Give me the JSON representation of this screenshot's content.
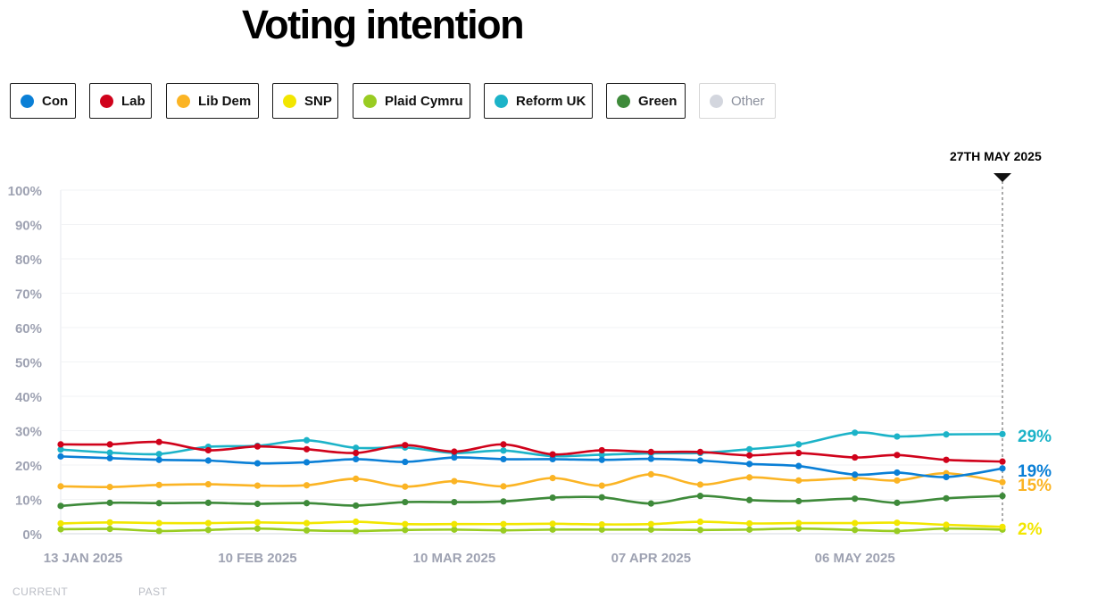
{
  "title": "Voting intention",
  "legend": [
    {
      "label": "Con",
      "color": "#0a7fd6",
      "active": true
    },
    {
      "label": "Lab",
      "color": "#d0021b",
      "active": true
    },
    {
      "label": "Lib Dem",
      "color": "#fbb424",
      "active": true
    },
    {
      "label": "SNP",
      "color": "#f2e600",
      "active": true
    },
    {
      "label": "Plaid Cymru",
      "color": "#99cc22",
      "active": true
    },
    {
      "label": "Reform UK",
      "color": "#1cb3c8",
      "active": true
    },
    {
      "label": "Green",
      "color": "#3e8a3a",
      "active": true
    },
    {
      "label": "Other",
      "color": "#d3d6de",
      "active": false
    }
  ],
  "marker_label": "27TH MAY 2025",
  "footer": {
    "left": "CURRENT",
    "right": "PAST"
  },
  "chart_data": {
    "type": "line",
    "x": [
      "2025-01-13",
      "2025-01-20",
      "2025-01-27",
      "2025-02-03",
      "2025-02-10",
      "2025-02-17",
      "2025-02-24",
      "2025-03-03",
      "2025-03-10",
      "2025-03-17",
      "2025-03-24",
      "2025-03-31",
      "2025-04-07",
      "2025-04-14",
      "2025-04-21",
      "2025-04-28",
      "2025-05-06",
      "2025-05-12",
      "2025-05-19",
      "2025-05-27"
    ],
    "x_ticks": [
      "13 JAN 2025",
      "10 FEB 2025",
      "10 MAR 2025",
      "07 APR 2025",
      "06 MAY 2025"
    ],
    "y_ticks": [
      "0%",
      "10%",
      "20%",
      "30%",
      "40%",
      "50%",
      "60%",
      "70%",
      "80%",
      "90%",
      "100%"
    ],
    "ylim": [
      0,
      100
    ],
    "grid": true,
    "series": [
      {
        "name": "Con",
        "color": "#0a7fd6",
        "end_label": "19%",
        "values": [
          22.5,
          22,
          21.5,
          21.3,
          20.5,
          20.8,
          21.7,
          20.9,
          22.2,
          21.7,
          21.7,
          21.5,
          21.8,
          21.3,
          20.3,
          19.7,
          17.2,
          17.8,
          16.5,
          19
        ]
      },
      {
        "name": "Lab",
        "color": "#d0021b",
        "end_label": "",
        "values": [
          26,
          26,
          26.7,
          24.3,
          25.4,
          24.6,
          23.5,
          25.8,
          23.9,
          26,
          23.1,
          24.3,
          23.8,
          23.8,
          22.8,
          23.5,
          22.2,
          22.9,
          21.5,
          21
        ]
      },
      {
        "name": "Lib Dem",
        "color": "#fbb424",
        "end_label": "15%",
        "values": [
          13.8,
          13.6,
          14.2,
          14.4,
          14,
          14.1,
          16,
          13.7,
          15.3,
          13.8,
          16.2,
          14,
          17.3,
          14.3,
          16.4,
          15.5,
          16.2,
          15.5,
          17.6,
          15
        ]
      },
      {
        "name": "SNP",
        "color": "#f2e600",
        "end_label": "2%",
        "values": [
          3,
          3.3,
          3.1,
          3.1,
          3.3,
          3.1,
          3.5,
          2.8,
          2.8,
          2.8,
          2.9,
          2.7,
          2.8,
          3.5,
          3,
          3.1,
          3.1,
          3.2,
          2.6,
          2
        ]
      },
      {
        "name": "Plaid Cymru",
        "color": "#99cc22",
        "end_label": "",
        "values": [
          1.3,
          1.4,
          0.8,
          1.1,
          1.5,
          1,
          0.8,
          1.1,
          1.2,
          1,
          1.2,
          1.2,
          1.2,
          1.1,
          1.2,
          1.5,
          1.1,
          0.8,
          1.5,
          1.2
        ]
      },
      {
        "name": "Reform UK",
        "color": "#1cb3c8",
        "end_label": "29%",
        "values": [
          24.5,
          23.6,
          23.2,
          25.3,
          25.6,
          27.2,
          25,
          25.1,
          23.5,
          24.2,
          22.6,
          23,
          23.4,
          23.5,
          24.6,
          26,
          29.4,
          28.3,
          28.9,
          29
        ]
      },
      {
        "name": "Green",
        "color": "#3e8a3a",
        "end_label": "",
        "values": [
          8.1,
          9,
          8.9,
          9,
          8.7,
          8.9,
          8.2,
          9.2,
          9.2,
          9.4,
          10.5,
          10.6,
          8.8,
          11,
          9.8,
          9.5,
          10.2,
          9,
          10.3,
          11
        ]
      }
    ]
  }
}
